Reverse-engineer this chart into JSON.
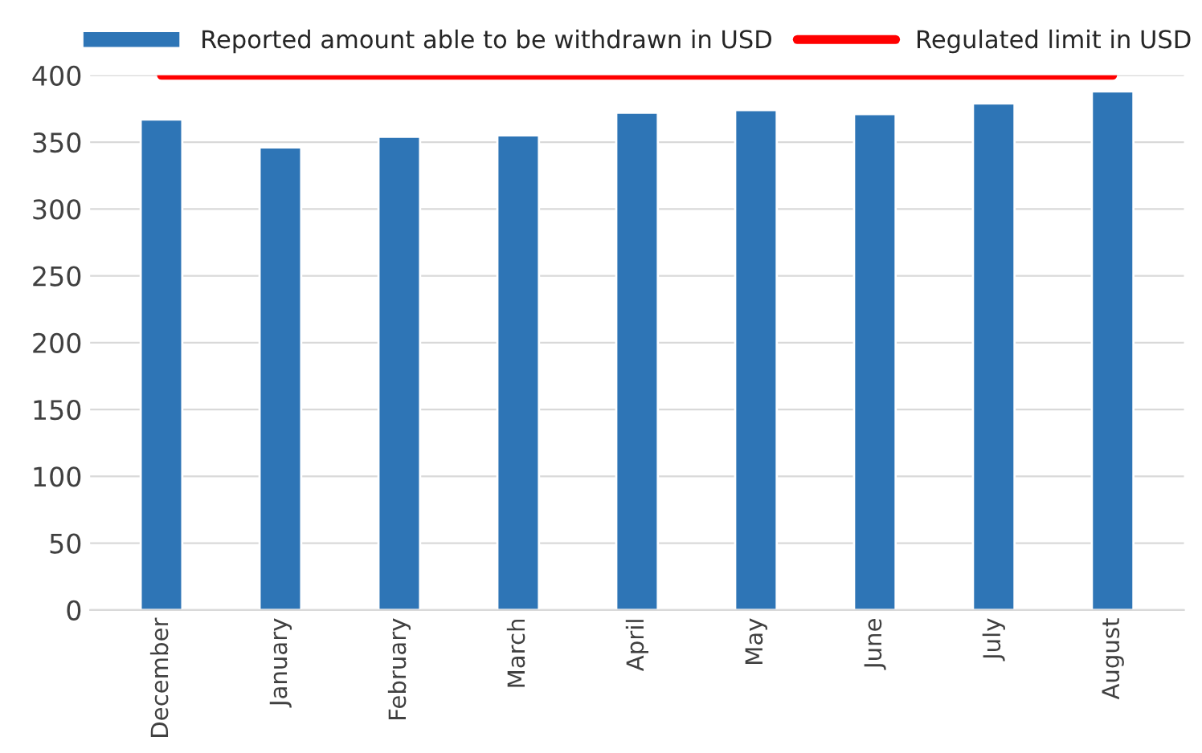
{
  "chart_data": {
    "type": "bar",
    "categories": [
      "December",
      "January",
      "February",
      "March",
      "April",
      "May",
      "June",
      "July",
      "August"
    ],
    "series": [
      {
        "name": "Reported amount able to be withdrawn in USD",
        "color": "#2e75b6",
        "values": [
          367,
          346,
          354,
          355,
          372,
          374,
          371,
          379,
          388
        ]
      },
      {
        "name": "Regulated limit in USD",
        "type": "line",
        "color": "#ff0000",
        "values": [
          400,
          400,
          400,
          400,
          400,
          400,
          400,
          400,
          400
        ]
      }
    ],
    "ylim": [
      0,
      400
    ],
    "yticks": [
      0,
      50,
      100,
      150,
      200,
      250,
      300,
      350,
      400
    ],
    "grid": "y",
    "legend": "top"
  }
}
